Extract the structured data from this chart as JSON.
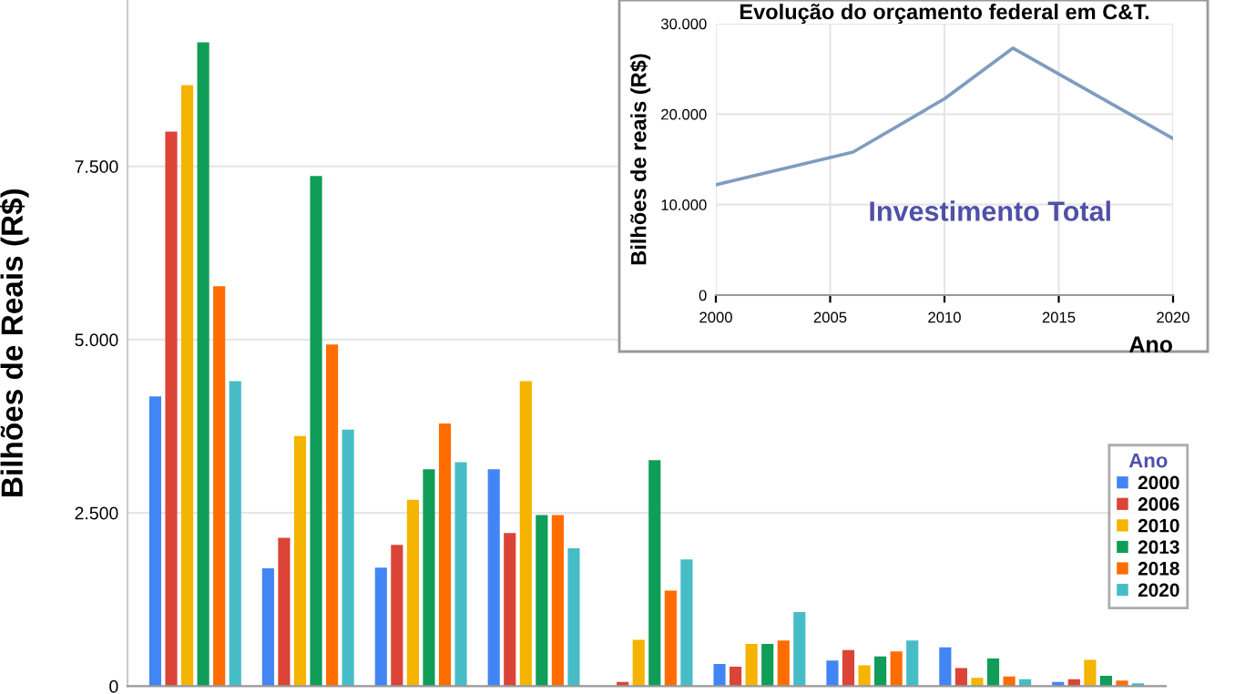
{
  "chart_data": [
    {
      "type": "bar",
      "ylabel": "Bilhões de Reais (R$)",
      "legend_title": "Ano",
      "legend": "right",
      "grid": "y",
      "tick_labels": "y",
      "categories": [
        null,
        null,
        null,
        null,
        null,
        null,
        null,
        null,
        null
      ],
      "ylim": [
        0,
        9900
      ],
      "yticks": [
        {
          "value": 0,
          "label": "0"
        },
        {
          "value": 2500,
          "label": "2.500"
        },
        {
          "value": 5000,
          "label": "5.000"
        },
        {
          "value": 7500,
          "label": "7.500"
        }
      ],
      "series": [
        {
          "name": "2000",
          "color": "#4285f4",
          "values": [
            4180,
            1700,
            1710,
            3130,
            null,
            320,
            370,
            560,
            60
          ]
        },
        {
          "name": "2006",
          "color": "#db4437",
          "values": [
            8000,
            2140,
            2040,
            2210,
            60,
            280,
            520,
            260,
            100
          ]
        },
        {
          "name": "2010",
          "color": "#f4b400",
          "values": [
            8670,
            3610,
            2690,
            4400,
            670,
            610,
            300,
            120,
            380
          ]
        },
        {
          "name": "2013",
          "color": "#0f9d58",
          "values": [
            9290,
            7360,
            3130,
            2470,
            3260,
            610,
            430,
            400,
            150
          ]
        },
        {
          "name": "2018",
          "color": "#ff6d00",
          "values": [
            5770,
            4930,
            3790,
            2470,
            1380,
            660,
            500,
            140,
            80
          ]
        },
        {
          "name": "2020",
          "color": "#46bdc6",
          "values": [
            4400,
            3700,
            3230,
            1990,
            1830,
            1070,
            660,
            100,
            40
          ]
        }
      ]
    },
    {
      "type": "line",
      "title": "Evolução do orçamento federal em C&T.",
      "ylabel": "Bilhões de reais (R$)",
      "xlabel": "Ano",
      "grid": true,
      "annotations": [
        "Investimento Total"
      ],
      "x": [
        2000,
        2006,
        2010,
        2013,
        2020
      ],
      "xlim": [
        2000,
        2020
      ],
      "xticks": [
        2000,
        2005,
        2010,
        2015,
        2020
      ],
      "ylim": [
        0,
        30000
      ],
      "yticks": [
        {
          "value": 0,
          "label": "0"
        },
        {
          "value": 10000,
          "label": "10.000"
        },
        {
          "value": 20000,
          "label": "20.000"
        },
        {
          "value": 30000,
          "label": "30.000"
        }
      ],
      "series": [
        {
          "color": "#7f9cc0",
          "values": [
            12200,
            15800,
            21700,
            27300,
            17300
          ]
        }
      ]
    }
  ]
}
